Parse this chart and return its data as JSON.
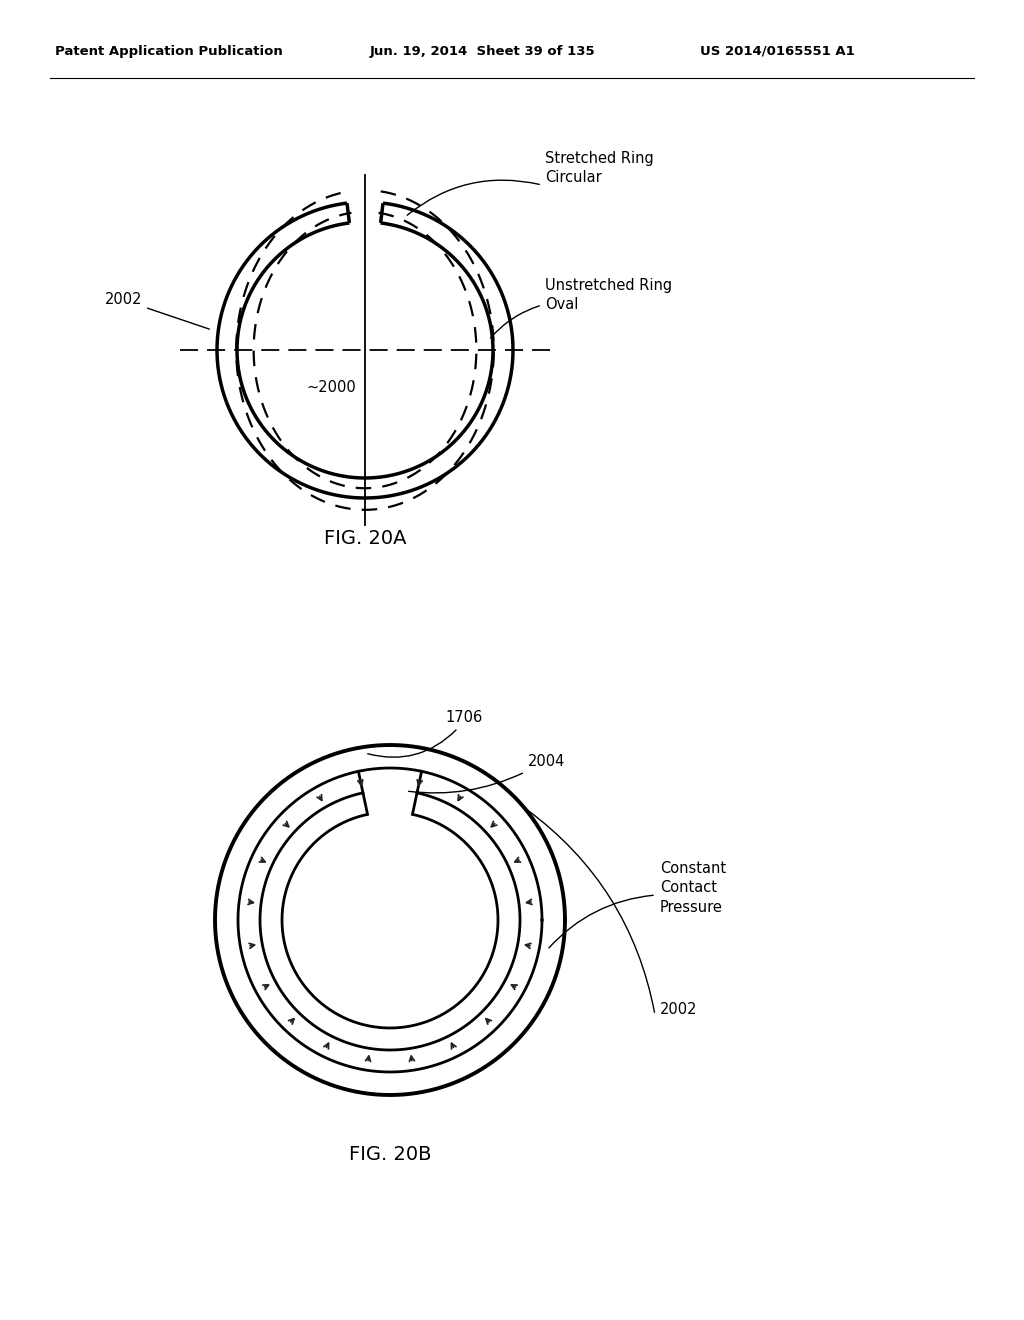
{
  "background_color": "#ffffff",
  "header_text": "Patent Application Publication",
  "header_date": "Jun. 19, 2014  Sheet 39 of 135",
  "header_patent": "US 2014/0165551 A1",
  "fig20a_caption": "FIG. 20A",
  "fig20b_caption": "FIG. 20B",
  "label_2002a": "2002",
  "label_2000": "~2000",
  "label_stretched": "Stretched Ring\nCircular",
  "label_unstretched": "Unstretched Ring\nOval",
  "label_1706": "1706",
  "label_2004": "2004",
  "label_2002b": "2002",
  "label_pressure": "Constant\nContact\nPressure"
}
